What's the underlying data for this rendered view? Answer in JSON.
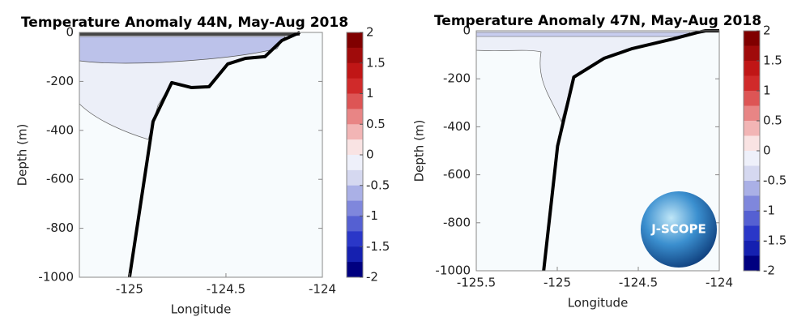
{
  "chart_data": [
    {
      "type": "line",
      "title": "Temperature Anomaly 44N, May-Aug 2018",
      "xlabel": "Longitude",
      "ylabel": "Depth (m)",
      "xlim": [
        -125.26,
        -124
      ],
      "ylim": [
        -1000,
        0
      ],
      "xticks": [
        -125,
        -124.5,
        -124
      ],
      "yticks": [
        -1000,
        -800,
        -600,
        -400,
        -200,
        0
      ],
      "series": [
        {
          "color": "#000000",
          "x": [
            -125.0,
            -124.878,
            -124.781,
            -124.68,
            -124.588,
            -124.491,
            -124.399,
            -124.298,
            -124.21,
            -124.117
          ],
          "values": [
            -1000,
            -364,
            -205,
            -225,
            -222,
            -129,
            -106,
            -99,
            -33,
            0
          ]
        }
      ],
      "colorbar": {
        "lim": [
          -2,
          2
        ],
        "ticks": [
          2,
          1.5,
          1,
          0.5,
          0,
          -0.5,
          -1,
          -1.5,
          -2
        ],
        "colors": [
          "#800000",
          "#a00b0b",
          "#c01616",
          "#d02a2a",
          "#dd5555",
          "#e88585",
          "#f2b5b5",
          "#f9e3e3",
          "#eef0fa",
          "#d5d8f0",
          "#aab0e6",
          "#7f87dc",
          "#5560d2",
          "#2a37c8",
          "#1520b0",
          "#000080"
        ]
      }
    },
    {
      "type": "line",
      "title": "Temperature Anomaly 47N, May-Aug 2018",
      "xlabel": "Longitude",
      "ylabel": "Depth (m)",
      "logo": "J-SCOPE",
      "xlim": [
        -125.5,
        -124
      ],
      "ylim": [
        -1000,
        0
      ],
      "xticks": [
        -125.5,
        -125,
        -124.5,
        -124
      ],
      "yticks": [
        -1000,
        -800,
        -600,
        -400,
        -200,
        0
      ],
      "series": [
        {
          "color": "#000000",
          "x": [
            -125.084,
            -124.998,
            -124.898,
            -124.712,
            -124.537,
            -124.286,
            -124.135,
            -124.085,
            -124.0
          ],
          "values": [
            -1000,
            -480,
            -193,
            -115,
            -74,
            -34,
            -7,
            0,
            0
          ]
        }
      ],
      "colorbar": {
        "lim": [
          -2,
          2
        ],
        "ticks": [
          2,
          1.5,
          1,
          0.5,
          0,
          -0.5,
          -1,
          -1.5,
          -2
        ],
        "colors": [
          "#800000",
          "#a00b0b",
          "#c01616",
          "#d02a2a",
          "#dd5555",
          "#e88585",
          "#f2b5b5",
          "#f9e3e3",
          "#eef0fa",
          "#d5d8f0",
          "#aab0e6",
          "#7f87dc",
          "#5560d2",
          "#2a37c8",
          "#1520b0",
          "#000080"
        ]
      }
    }
  ]
}
